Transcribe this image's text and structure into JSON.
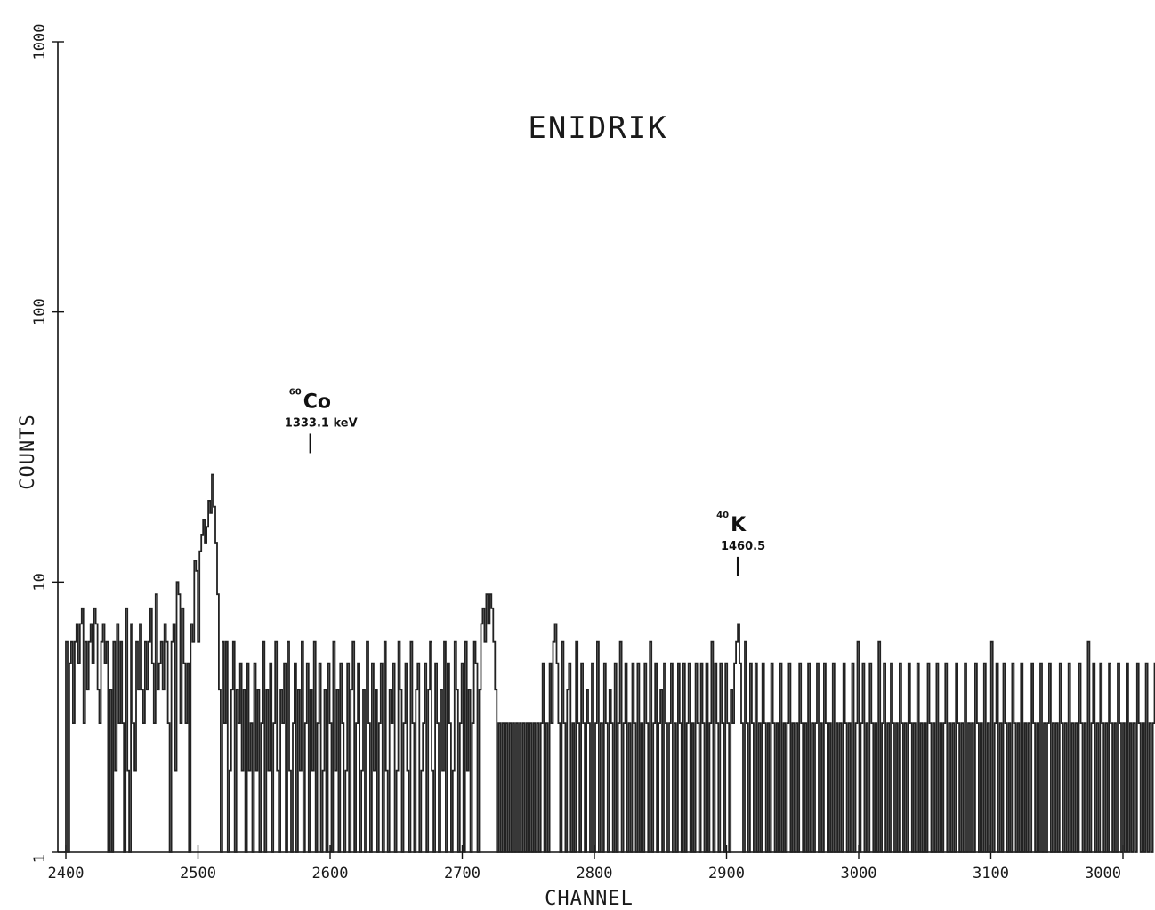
{
  "chart_data": {
    "type": "line",
    "title": "ENIDRIK",
    "xlabel": "CHANNEL",
    "ylabel": "COUNTS",
    "xlim": [
      2400,
      3000
    ],
    "ylim": [
      1,
      1000
    ],
    "y_scale": "log",
    "x_ticks": [
      "2400",
      "2500",
      "2600",
      "2700",
      "2800",
      "2900",
      "3000",
      "3100",
      "3000"
    ],
    "y_ticks": [
      "1",
      "10",
      "100",
      "1000"
    ],
    "grid": false,
    "legend": "none",
    "series": [
      {
        "x_start": 2400,
        "x_step": 1,
        "values": [
          1,
          6,
          1,
          5,
          6,
          3,
          6,
          7,
          5,
          7,
          8,
          3,
          6,
          4,
          6,
          7,
          5,
          8,
          7,
          4,
          3,
          6,
          7,
          5,
          6,
          1,
          4,
          1,
          6,
          2,
          7,
          3,
          6,
          3,
          1,
          8,
          2,
          1,
          7,
          3,
          2,
          6,
          4,
          7,
          4,
          3,
          6,
          4,
          6,
          8,
          5,
          3,
          9,
          4,
          5,
          6,
          4,
          7,
          6,
          3,
          1,
          6,
          7,
          2,
          10,
          9,
          3,
          8,
          5,
          3,
          5,
          1,
          7,
          6,
          12,
          11,
          6,
          13,
          15,
          17,
          14,
          16,
          20,
          18,
          25,
          19,
          14,
          9,
          4,
          1,
          6,
          3,
          6,
          1,
          2,
          4,
          6,
          1,
          4,
          3,
          5,
          2,
          4,
          1,
          5,
          2,
          3,
          1,
          5,
          2,
          4,
          1,
          3,
          6,
          1,
          4,
          2,
          5,
          1,
          3,
          6,
          2,
          1,
          4,
          3,
          5,
          1,
          6,
          2,
          1,
          3,
          5,
          1,
          4,
          2,
          6,
          1,
          3,
          5,
          1,
          4,
          2,
          6,
          1,
          3,
          5,
          1,
          2,
          4,
          1,
          5,
          3,
          1,
          6,
          2,
          4,
          1,
          5,
          3,
          1,
          2,
          5,
          1,
          4,
          6,
          1,
          3,
          5,
          1,
          2,
          4,
          1,
          6,
          3,
          1,
          5,
          2,
          4,
          1,
          3,
          5,
          1,
          6,
          2,
          1,
          4,
          3,
          5,
          1,
          2,
          6,
          4,
          1,
          3,
          5,
          2,
          1,
          6,
          3,
          1,
          4,
          5,
          1,
          2,
          3,
          5,
          1,
          4,
          6,
          2,
          1,
          5,
          3,
          1,
          4,
          2,
          6,
          1,
          5,
          3,
          1,
          2,
          6,
          4,
          1,
          3,
          5,
          1,
          6,
          2,
          4,
          1,
          3,
          6,
          5,
          1,
          4,
          7,
          8,
          6,
          9,
          7,
          9,
          8,
          6,
          4,
          1,
          3,
          1,
          3,
          1,
          3,
          1,
          3,
          1,
          3,
          1,
          3,
          1,
          3,
          1,
          3,
          1,
          3,
          1,
          3,
          1,
          3,
          1,
          3,
          1,
          3,
          5,
          1,
          3,
          1,
          5,
          3,
          6,
          7,
          5,
          3,
          1,
          6,
          3,
          1,
          4,
          5,
          1,
          3,
          1,
          6,
          3,
          1,
          5,
          3,
          1,
          4,
          3,
          1,
          5,
          1,
          3,
          6,
          1,
          3,
          1,
          5,
          3,
          1,
          4,
          3,
          1,
          5,
          1,
          3,
          6,
          1,
          3,
          5,
          1,
          3,
          1,
          5,
          3,
          1,
          5,
          1,
          3,
          1,
          5,
          3,
          1,
          6,
          1,
          3,
          5,
          1,
          3,
          4,
          1,
          5,
          3,
          1,
          3,
          5,
          1,
          3,
          1,
          5,
          3,
          1,
          5,
          1,
          3,
          5,
          1,
          3,
          1,
          5,
          3,
          1,
          5,
          3,
          1,
          5,
          1,
          3,
          6,
          1,
          5,
          3,
          1,
          5,
          3,
          1,
          5,
          3,
          1,
          4,
          3,
          5,
          6,
          7,
          5,
          3,
          1,
          6,
          3,
          1,
          5,
          3,
          1,
          5,
          1,
          3,
          1,
          5,
          3,
          1,
          3,
          1,
          5,
          3,
          1,
          3,
          1,
          5,
          1,
          3,
          1,
          3,
          5,
          1,
          3,
          1,
          3,
          1,
          5,
          3,
          1,
          3,
          1,
          5,
          1,
          3,
          1,
          3,
          5,
          1,
          3,
          1,
          5,
          3,
          1,
          3,
          1,
          5,
          1,
          3,
          1,
          3,
          1,
          5,
          3,
          1,
          3,
          1,
          5,
          1,
          3,
          6,
          1,
          3,
          5,
          1,
          3,
          1,
          5,
          3,
          1,
          3,
          1,
          6,
          1,
          3,
          5,
          1,
          3,
          1,
          5,
          3,
          1,
          3,
          1,
          5,
          3,
          1,
          3,
          1,
          5,
          3,
          1,
          3,
          1,
          5,
          1,
          3,
          1,
          3,
          1,
          5,
          3,
          1,
          3,
          1,
          5,
          1,
          3,
          1,
          3,
          5,
          1,
          3,
          1,
          3,
          1,
          5,
          3,
          1,
          3,
          1,
          5,
          1,
          3,
          1,
          3,
          1,
          5,
          3,
          1,
          3,
          1,
          5,
          1,
          3,
          1,
          6,
          1,
          3,
          5,
          1,
          3,
          1,
          5,
          3,
          1,
          3,
          1,
          5,
          3,
          1,
          3,
          1,
          5,
          1,
          3,
          1,
          3,
          1,
          5,
          3,
          1,
          3,
          1,
          5,
          1,
          3,
          1,
          3,
          5,
          1,
          3,
          1,
          3,
          1,
          5,
          3,
          1,
          3,
          1,
          5,
          1,
          3,
          1,
          3,
          1,
          5,
          3,
          1,
          3,
          1,
          6,
          1,
          3,
          5,
          1,
          3,
          1,
          5,
          3,
          1,
          3,
          1,
          5,
          3,
          1,
          3,
          1,
          5,
          3,
          1,
          3,
          1,
          5,
          1,
          3,
          1,
          3,
          1,
          5,
          3,
          1,
          3,
          1,
          5,
          1,
          3,
          1,
          3,
          5,
          1,
          3,
          1,
          3,
          1,
          5,
          3,
          1,
          3,
          1,
          5,
          1,
          3,
          1,
          3,
          1,
          5,
          3,
          1,
          3,
          1,
          5,
          1,
          3,
          1,
          3,
          5,
          1,
          3,
          1,
          3,
          1,
          5,
          3,
          1,
          3,
          1,
          5,
          1,
          3,
          1,
          3,
          1,
          5,
          3,
          1,
          3,
          1,
          5,
          1,
          3,
          1,
          3,
          5,
          1,
          3,
          1,
          3,
          1,
          5,
          3,
          1,
          3,
          1,
          5,
          1,
          3,
          1,
          3,
          1,
          5,
          3,
          1,
          3,
          1,
          5,
          1,
          3,
          1,
          3,
          5,
          1,
          3,
          1,
          3,
          1,
          5,
          3,
          1,
          3,
          1,
          5,
          1,
          3,
          1,
          3,
          1,
          5,
          3,
          1,
          3,
          1,
          5,
          1,
          3,
          1,
          3,
          5,
          1,
          3,
          1,
          3,
          1,
          5,
          3,
          1,
          3,
          1,
          5,
          1,
          3,
          1,
          3,
          1,
          5,
          3,
          1,
          3,
          1,
          5,
          1,
          3,
          1,
          3,
          5,
          1,
          3,
          1,
          3,
          1,
          5,
          3,
          1,
          3,
          1,
          5,
          1,
          3,
          1,
          3,
          1,
          5,
          3,
          1,
          3,
          1,
          5,
          1,
          3
        ]
      }
    ],
    "annotations": [
      {
        "isotope_mass": "60",
        "isotope_symbol": "Co",
        "energy": "1333.1 keV",
        "channel": 2540,
        "marker_counts": 30
      },
      {
        "isotope_mass": "40",
        "isotope_symbol": "K",
        "energy": "1460.5",
        "channel": 2783,
        "marker_counts": 10.5
      }
    ]
  }
}
